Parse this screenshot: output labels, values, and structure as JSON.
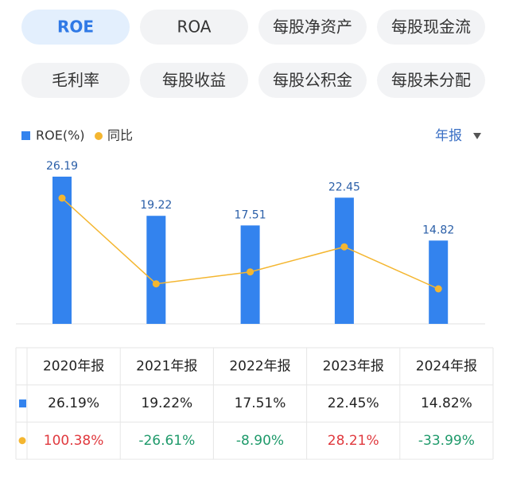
{
  "tabs": [
    "ROE",
    "ROA",
    "每股净资产",
    "每股现金流",
    "毛利率",
    "每股收益",
    "每股公积金",
    "每股未分配"
  ],
  "selected_tab": 0,
  "period_selector": "年报",
  "chart_data": {
    "type": "bar-line",
    "categories": [
      "2020年报",
      "2021年报",
      "2022年报",
      "2023年报",
      "2024年报"
    ],
    "series": [
      {
        "name": "ROE(%)",
        "type": "bar",
        "color": "#3383ee",
        "values": [
          26.19,
          19.22,
          17.51,
          22.45,
          14.82
        ]
      },
      {
        "name": "同比",
        "type": "line",
        "color": "#f4b630",
        "axis": "y2",
        "values": [
          100.38,
          -26.61,
          -8.9,
          28.21,
          -33.99
        ]
      }
    ],
    "positive_color": "#e0393e",
    "negative_color": "#1f9a6b"
  },
  "table": {
    "rows": [
      [
        "26.19%",
        "19.22%",
        "17.51%",
        "22.45%",
        "14.82%"
      ],
      [
        "100.38%",
        "-26.61%",
        "-8.90%",
        "28.21%",
        "-33.99%"
      ]
    ]
  }
}
